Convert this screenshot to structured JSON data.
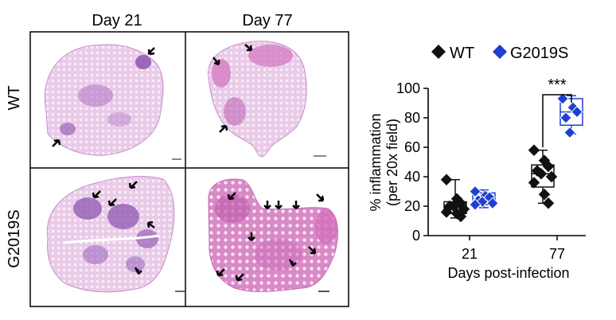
{
  "panel_histology": {
    "column_labels": [
      "Day 21",
      "Day 77"
    ],
    "row_labels": [
      "WT",
      "G2019S"
    ]
  },
  "colors": {
    "wt": "#111111",
    "g2019s": "#1f3fd0",
    "tissue_light": "#e7c6e6",
    "tissue_dark": "#9a5cb5",
    "tissue_pink": "#d77cc0"
  },
  "chart_data": {
    "type": "box",
    "categories": [
      "21",
      "77"
    ],
    "xlabel": "Days post-infection",
    "ylabel_line1": "% inflammation",
    "ylabel_line2": "(per 20x field)",
    "ylim": [
      0,
      100
    ],
    "yticks": [
      0,
      20,
      40,
      60,
      80,
      100
    ],
    "legend_position": "top",
    "series": [
      {
        "name": "WT",
        "marker": "diamond-filled",
        "color": "#111111",
        "groups": [
          {
            "category": "21",
            "points": [
              38,
              25,
              22,
              20,
              20,
              18,
              16,
              15,
              13
            ],
            "min": 12,
            "q1": 15,
            "median": 19,
            "q3": 23,
            "max": 38
          },
          {
            "category": "77",
            "points": [
              58,
              51,
              47,
              44,
              42,
              40,
              36,
              28,
              22
            ],
            "min": 22,
            "q1": 33,
            "median": 42,
            "q3": 48,
            "max": 58
          }
        ]
      },
      {
        "name": "G2019S",
        "marker": "diamond-open",
        "color": "#1f3fd0",
        "groups": [
          {
            "category": "21",
            "points": [
              30,
              27,
              26,
              24,
              23,
              22,
              21
            ],
            "min": 19,
            "q1": 21,
            "median": 25,
            "q3": 29,
            "max": 31
          },
          {
            "category": "77",
            "points": [
              93,
              87,
              84,
              80,
              70
            ],
            "min": 69,
            "q1": 75,
            "median": 84,
            "q3": 93,
            "max": 95
          }
        ]
      }
    ],
    "annotations": [
      {
        "text": "***",
        "between": [
          "WT 77",
          "G2019S 77"
        ]
      }
    ]
  }
}
